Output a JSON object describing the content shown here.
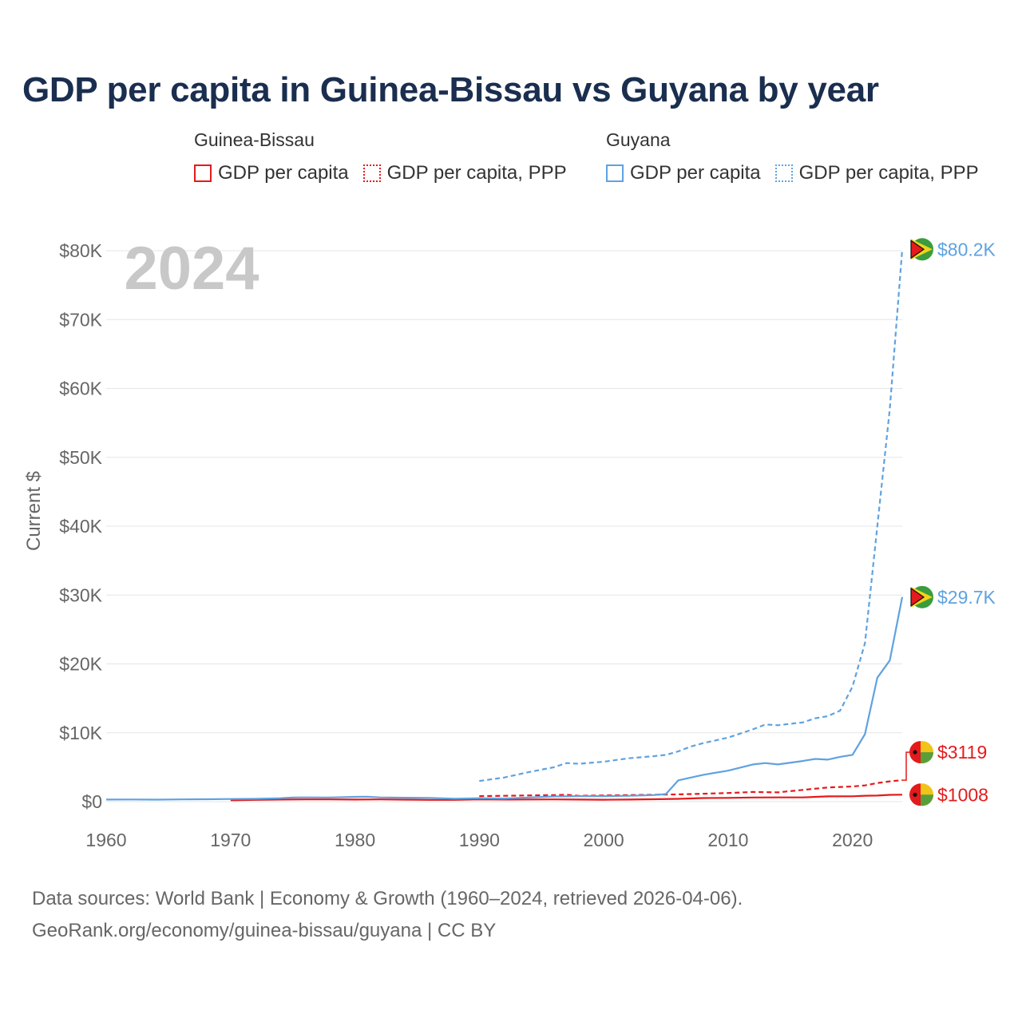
{
  "title": "GDP per capita in Guinea-Bissau vs Guyana by year",
  "legend": {
    "groups": [
      {
        "name": "Guinea-Bissau",
        "color": "#e41a1c",
        "items": [
          {
            "label": "GDP per capita",
            "style": "solid"
          },
          {
            "label": "GDP per capita, PPP",
            "style": "dotted"
          }
        ]
      },
      {
        "name": "Guyana",
        "color": "#5fa2e0",
        "items": [
          {
            "label": "GDP per capita",
            "style": "solid"
          },
          {
            "label": "GDP per capita, PPP",
            "style": "dotted"
          }
        ]
      }
    ]
  },
  "year_watermark": "2024",
  "footer": {
    "line1": "Data sources: World Bank | Economy & Growth (1960–2024, retrieved 2026-04-06).",
    "line2": "GeoRank.org/economy/guinea-bissau/guyana | CC BY"
  },
  "colors": {
    "guinea_bissau": "#e41a1c",
    "guyana": "#5fa2e0",
    "grid": "#e6e6e6",
    "axis_text": "#666666",
    "watermark": "#c8c8c8"
  },
  "chart_data": {
    "type": "line",
    "title": "GDP per capita in Guinea-Bissau vs Guyana by year",
    "ylabel": "Current $",
    "xlabel": "",
    "xlim": [
      1960,
      2024
    ],
    "ylim": [
      0,
      80000
    ],
    "x_ticks": [
      1960,
      1970,
      1980,
      1990,
      2000,
      2010,
      2020
    ],
    "x_tick_labels": [
      "1960",
      "1970",
      "1980",
      "1990",
      "2000",
      "2010",
      "2020"
    ],
    "y_ticks": [
      0,
      10000,
      20000,
      30000,
      40000,
      50000,
      60000,
      70000,
      80000
    ],
    "y_tick_labels": [
      "$0",
      "$10K",
      "$20K",
      "$30K",
      "$40K",
      "$50K",
      "$60K",
      "$70K",
      "$80K"
    ],
    "series": [
      {
        "name": "Guinea-Bissau GDP per capita",
        "country": "Guinea-Bissau",
        "style": "solid",
        "color": "#e41a1c",
        "end_label": "$1008",
        "points": [
          [
            1970,
            200
          ],
          [
            1972,
            250
          ],
          [
            1974,
            300
          ],
          [
            1976,
            330
          ],
          [
            1978,
            330
          ],
          [
            1980,
            300
          ],
          [
            1982,
            320
          ],
          [
            1984,
            290
          ],
          [
            1986,
            260
          ],
          [
            1988,
            250
          ],
          [
            1990,
            320
          ],
          [
            1992,
            300
          ],
          [
            1994,
            310
          ],
          [
            1996,
            330
          ],
          [
            1998,
            300
          ],
          [
            2000,
            280
          ],
          [
            2002,
            300
          ],
          [
            2004,
            350
          ],
          [
            2006,
            400
          ],
          [
            2008,
            520
          ],
          [
            2010,
            550
          ],
          [
            2012,
            600
          ],
          [
            2014,
            610
          ],
          [
            2016,
            620
          ],
          [
            2018,
            760
          ],
          [
            2020,
            780
          ],
          [
            2021,
            860
          ],
          [
            2022,
            880
          ],
          [
            2023,
            980
          ],
          [
            2024,
            1008
          ]
        ]
      },
      {
        "name": "Guinea-Bissau GDP per capita, PPP",
        "country": "Guinea-Bissau",
        "style": "dashed",
        "color": "#e41a1c",
        "end_label": "$3119",
        "points": [
          [
            1990,
            800
          ],
          [
            1992,
            850
          ],
          [
            1994,
            900
          ],
          [
            1996,
            950
          ],
          [
            1997,
            1000
          ],
          [
            1998,
            850
          ],
          [
            2000,
            900
          ],
          [
            2002,
            950
          ],
          [
            2004,
            1000
          ],
          [
            2006,
            1050
          ],
          [
            2008,
            1150
          ],
          [
            2010,
            1250
          ],
          [
            2012,
            1400
          ],
          [
            2014,
            1350
          ],
          [
            2016,
            1700
          ],
          [
            2018,
            2050
          ],
          [
            2020,
            2200
          ],
          [
            2021,
            2350
          ],
          [
            2022,
            2700
          ],
          [
            2023,
            2950
          ],
          [
            2024,
            3119
          ]
        ]
      },
      {
        "name": "Guyana GDP per capita",
        "country": "Guyana",
        "style": "solid",
        "color": "#5fa2e0",
        "end_label": "$29.7K",
        "points": [
          [
            1960,
            300
          ],
          [
            1962,
            310
          ],
          [
            1964,
            290
          ],
          [
            1966,
            330
          ],
          [
            1968,
            350
          ],
          [
            1970,
            380
          ],
          [
            1972,
            400
          ],
          [
            1974,
            500
          ],
          [
            1975,
            600
          ],
          [
            1976,
            620
          ],
          [
            1978,
            600
          ],
          [
            1980,
            700
          ],
          [
            1981,
            720
          ],
          [
            1982,
            620
          ],
          [
            1984,
            570
          ],
          [
            1986,
            540
          ],
          [
            1988,
            430
          ],
          [
            1990,
            500
          ],
          [
            1992,
            450
          ],
          [
            1994,
            600
          ],
          [
            1996,
            750
          ],
          [
            1998,
            800
          ],
          [
            2000,
            800
          ],
          [
            2002,
            850
          ],
          [
            2004,
            950
          ],
          [
            2005,
            1100
          ],
          [
            2006,
            3100
          ],
          [
            2008,
            3900
          ],
          [
            2010,
            4500
          ],
          [
            2012,
            5400
          ],
          [
            2013,
            5600
          ],
          [
            2014,
            5400
          ],
          [
            2016,
            5900
          ],
          [
            2017,
            6200
          ],
          [
            2018,
            6100
          ],
          [
            2019,
            6500
          ],
          [
            2020,
            6800
          ],
          [
            2021,
            9800
          ],
          [
            2022,
            18000
          ],
          [
            2023,
            20500
          ],
          [
            2024,
            29700
          ]
        ]
      },
      {
        "name": "Guyana GDP per capita, PPP",
        "country": "Guyana",
        "style": "dashed",
        "color": "#5fa2e0",
        "end_label": "$80.2K",
        "points": [
          [
            1990,
            3000
          ],
          [
            1992,
            3500
          ],
          [
            1994,
            4300
          ],
          [
            1996,
            5000
          ],
          [
            1997,
            5600
          ],
          [
            1998,
            5500
          ],
          [
            2000,
            5800
          ],
          [
            2002,
            6300
          ],
          [
            2004,
            6600
          ],
          [
            2005,
            6800
          ],
          [
            2006,
            7300
          ],
          [
            2007,
            8000
          ],
          [
            2008,
            8500
          ],
          [
            2010,
            9300
          ],
          [
            2012,
            10500
          ],
          [
            2013,
            11200
          ],
          [
            2014,
            11100
          ],
          [
            2015,
            11300
          ],
          [
            2016,
            11500
          ],
          [
            2017,
            12100
          ],
          [
            2018,
            12400
          ],
          [
            2019,
            13200
          ],
          [
            2020,
            16700
          ],
          [
            2021,
            23000
          ],
          [
            2022,
            40000
          ],
          [
            2023,
            57000
          ],
          [
            2024,
            80200
          ]
        ]
      }
    ]
  }
}
